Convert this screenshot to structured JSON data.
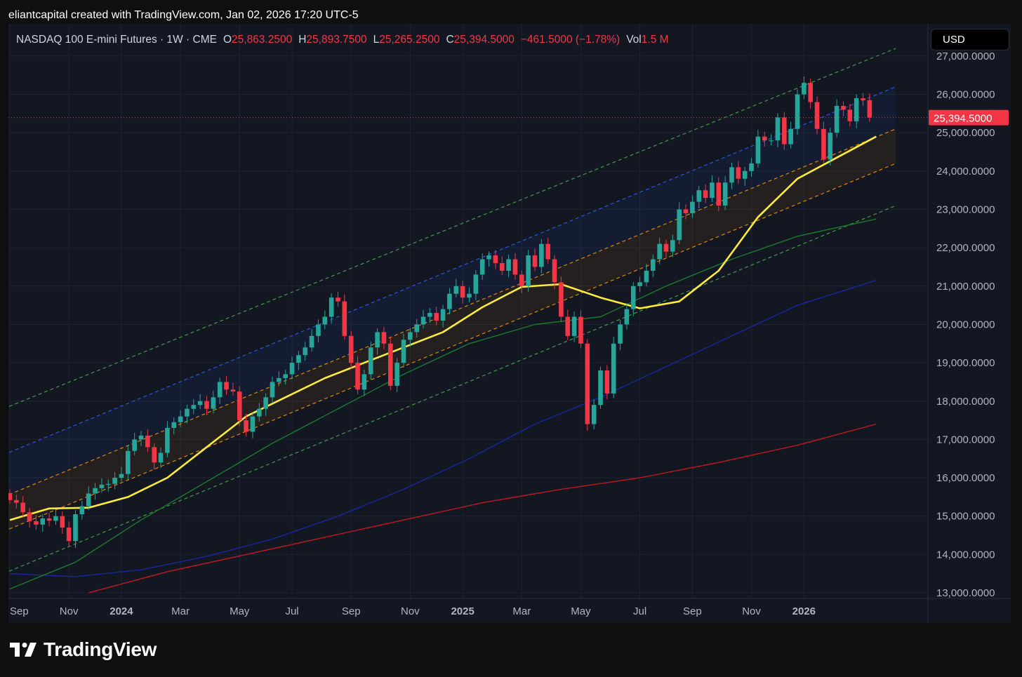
{
  "header": {
    "credit": "eliantcapital created with TradingView.com, Jan 02, 2026 17:20 UTC-5"
  },
  "legend": {
    "symbol": "NASDAQ 100 E-mini Futures · 1W · CME",
    "open_label": "O",
    "open": "25,863.2500",
    "high_label": "H",
    "high": "25,893.7500",
    "low_label": "L",
    "low": "25,265.2500",
    "close_label": "C",
    "close": "25,394.5000",
    "change": "−461.5000 (−1.78%)",
    "vol_label": "Vol",
    "vol": "1.5 M"
  },
  "currency_button": "USD",
  "footer": {
    "brand": "TradingView"
  },
  "colors": {
    "up": "#26a69a",
    "down": "#f23645",
    "background": "#131722",
    "ma_yellow": "#ffeb3b",
    "ma_green": "#1b7a2e",
    "ma_blue": "#1a26a0",
    "ma_red": "#c4161e",
    "channel_green": "#4caf50",
    "channel_blue": "#2962ff",
    "channel_orange": "#ff9800"
  },
  "chart_data": {
    "type": "candlestick",
    "interval": "1W",
    "ylim": [
      12900,
      27400
    ],
    "y_ticks": [
      "27,000.0000",
      "26,000.0000",
      "25,000.0000",
      "24,000.0000",
      "23,000.0000",
      "22,000.0000",
      "21,000.0000",
      "20,000.0000",
      "19,000.0000",
      "18,000.0000",
      "17,000.0000",
      "16,000.0000",
      "15,000.0000",
      "14,000.0000",
      "13,000.0000"
    ],
    "x_ticks": [
      {
        "label": "Sep",
        "w": 0,
        "bold": false
      },
      {
        "label": "Nov",
        "w": 9,
        "bold": false
      },
      {
        "label": "2024",
        "w": 17,
        "bold": true
      },
      {
        "label": "Mar",
        "w": 26,
        "bold": false
      },
      {
        "label": "May",
        "w": 35,
        "bold": false
      },
      {
        "label": "Jul",
        "w": 43,
        "bold": false
      },
      {
        "label": "Sep",
        "w": 52,
        "bold": false
      },
      {
        "label": "Nov",
        "w": 61,
        "bold": false
      },
      {
        "label": "2025",
        "w": 69,
        "bold": true
      },
      {
        "label": "Mar",
        "w": 78,
        "bold": false
      },
      {
        "label": "May",
        "w": 87,
        "bold": false
      },
      {
        "label": "Jul",
        "w": 96,
        "bold": false
      },
      {
        "label": "Sep",
        "w": 104,
        "bold": false
      },
      {
        "label": "Nov",
        "w": 113,
        "bold": false
      },
      {
        "label": "2026",
        "w": 121,
        "bold": true
      }
    ],
    "last_price": "25,394.5000",
    "closes": [
      15420,
      15350,
      15100,
      14870,
      14780,
      14940,
      14880,
      15000,
      14700,
      14350,
      15050,
      15260,
      15590,
      15730,
      15820,
      15840,
      16000,
      16100,
      16700,
      17000,
      17100,
      16800,
      16400,
      16650,
      17300,
      17450,
      17600,
      17800,
      17900,
      18000,
      17800,
      18100,
      18500,
      18300,
      18250,
      17500,
      17200,
      17600,
      17800,
      18100,
      18500,
      18600,
      18700,
      19000,
      19200,
      19400,
      19700,
      20000,
      20200,
      20700,
      20600,
      19700,
      19000,
      18300,
      18700,
      19400,
      19800,
      19500,
      18400,
      19000,
      19600,
      19800,
      20000,
      20200,
      20300,
      20100,
      20400,
      20800,
      21000,
      20700,
      20800,
      21300,
      21700,
      21800,
      21600,
      21400,
      21700,
      21300,
      21000,
      21800,
      21500,
      22100,
      21700,
      21100,
      20200,
      19700,
      20200,
      19500,
      17400,
      17900,
      18800,
      18200,
      19500,
      20000,
      20400,
      21000,
      21100,
      21400,
      21700,
      22100,
      21900,
      22200,
      23000,
      22900,
      23200,
      23500,
      23300,
      23700,
      23100,
      23700,
      24100,
      23800,
      24000,
      24200,
      24900,
      24800,
      24800,
      25400,
      24700,
      25100,
      26000,
      26300,
      25800,
      25100,
      24300,
      25000,
      25700,
      25600,
      25300,
      25900,
      25850,
      25395
    ],
    "ma_yellow": [
      [
        0,
        14900
      ],
      [
        6,
        15200
      ],
      [
        12,
        15220
      ],
      [
        18,
        15500
      ],
      [
        24,
        16000
      ],
      [
        30,
        16800
      ],
      [
        36,
        17600
      ],
      [
        42,
        18100
      ],
      [
        48,
        18600
      ],
      [
        54,
        19000
      ],
      [
        60,
        19400
      ],
      [
        66,
        19800
      ],
      [
        72,
        20450
      ],
      [
        78,
        20980
      ],
      [
        84,
        21050
      ],
      [
        90,
        20700
      ],
      [
        96,
        20420
      ],
      [
        102,
        20600
      ],
      [
        108,
        21400
      ],
      [
        114,
        22800
      ],
      [
        120,
        23800
      ],
      [
        126,
        24350
      ],
      [
        132,
        24900
      ]
    ],
    "ma_green": [
      [
        0,
        13100
      ],
      [
        10,
        13800
      ],
      [
        20,
        14900
      ],
      [
        30,
        15900
      ],
      [
        40,
        16900
      ],
      [
        50,
        17800
      ],
      [
        60,
        18700
      ],
      [
        70,
        19500
      ],
      [
        80,
        20000
      ],
      [
        90,
        20200
      ],
      [
        100,
        21000
      ],
      [
        110,
        21700
      ],
      [
        120,
        22300
      ],
      [
        132,
        22750
      ]
    ],
    "ma_blue": [
      [
        0,
        13500
      ],
      [
        10,
        13420
      ],
      [
        20,
        13600
      ],
      [
        30,
        13950
      ],
      [
        40,
        14400
      ],
      [
        50,
        15000
      ],
      [
        60,
        15700
      ],
      [
        70,
        16500
      ],
      [
        80,
        17400
      ],
      [
        90,
        18100
      ],
      [
        100,
        18900
      ],
      [
        110,
        19700
      ],
      [
        120,
        20500
      ],
      [
        132,
        21150
      ]
    ],
    "ma_red": [
      [
        12,
        13000
      ],
      [
        24,
        13550
      ],
      [
        36,
        14000
      ],
      [
        48,
        14450
      ],
      [
        60,
        14900
      ],
      [
        72,
        15350
      ],
      [
        84,
        15700
      ],
      [
        96,
        16000
      ],
      [
        108,
        16400
      ],
      [
        120,
        16850
      ],
      [
        132,
        17400
      ]
    ],
    "channel_lines": [
      {
        "color": "green",
        "w0": -1,
        "v0": 17800,
        "w1": 135,
        "v1": 27200
      },
      {
        "color": "blue",
        "w0": -1,
        "v0": 16600,
        "w1": 135,
        "v1": 26200
      },
      {
        "color": "orange",
        "w0": -1,
        "v0": 15500,
        "w1": 135,
        "v1": 25100
      },
      {
        "color": "orange",
        "w0": -1,
        "v0": 14600,
        "w1": 135,
        "v1": 24200
      },
      {
        "color": "green",
        "w0": -1,
        "v0": 13500,
        "w1": 135,
        "v1": 23100
      }
    ]
  }
}
